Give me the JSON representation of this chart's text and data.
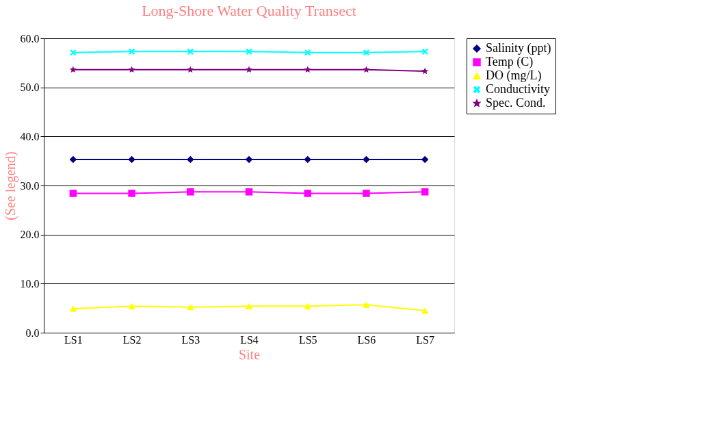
{
  "chart_data": {
    "type": "line",
    "title": "Long-Shore Water Quality Transect",
    "xlabel": "Site",
    "ylabel": "(See legend)",
    "categories": [
      "LS1",
      "LS2",
      "LS3",
      "LS4",
      "LS5",
      "LS6",
      "LS7"
    ],
    "ylim": [
      0,
      60
    ],
    "yticks": [
      {
        "value": 0,
        "label": "0.0"
      },
      {
        "value": 10,
        "label": "10.0"
      },
      {
        "value": 20,
        "label": "20.0"
      },
      {
        "value": 30,
        "label": "30.0"
      },
      {
        "value": 40,
        "label": "40.0"
      },
      {
        "value": 50,
        "label": "50.0"
      },
      {
        "value": 60,
        "label": "60.0"
      }
    ],
    "grid": "y",
    "legend": "right",
    "line_style": "solid",
    "series": [
      {
        "name": "Salinity (ppt)",
        "color": "#000080",
        "marker": "diamond",
        "values": [
          35.3,
          35.3,
          35.3,
          35.3,
          35.3,
          35.3,
          35.3
        ]
      },
      {
        "name": "Temp (C)",
        "color": "#ff00ff",
        "marker": "square",
        "values": [
          28.4,
          28.4,
          28.7,
          28.7,
          28.4,
          28.4,
          28.7
        ]
      },
      {
        "name": "DO (mg/L)",
        "color": "#ffff00",
        "marker": "triangle",
        "values": [
          4.9,
          5.4,
          5.2,
          5.4,
          5.4,
          5.7,
          4.5
        ]
      },
      {
        "name": "Conductivity",
        "color": "#00ffff",
        "marker": "cross",
        "values": [
          57.1,
          57.3,
          57.3,
          57.3,
          57.1,
          57.1,
          57.3
        ]
      },
      {
        "name": "Spec. Cond.",
        "color": "#800080",
        "marker": "star",
        "values": [
          53.6,
          53.6,
          53.6,
          53.6,
          53.6,
          53.6,
          53.3
        ]
      }
    ]
  }
}
